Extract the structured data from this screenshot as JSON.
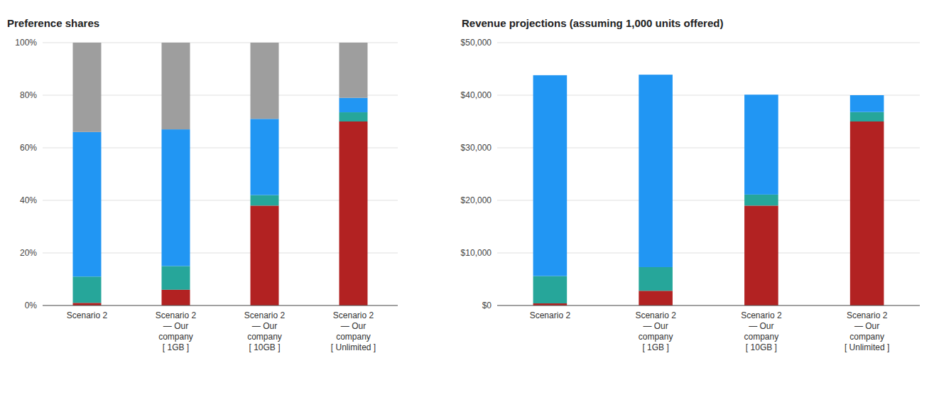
{
  "chart_data": [
    {
      "type": "bar",
      "stacked": true,
      "grid": true,
      "title": "Preference shares",
      "categories": [
        "Scenario 2",
        "Scenario 2\n— Our\ncompany\n[ 1GB ]",
        "Scenario 2\n— Our\ncompany\n[ 10GB ]",
        "Scenario 2\n— Our\ncompany\n[ Unlimited ]"
      ],
      "series": [
        {
          "color": "#B22222",
          "values": [
            0.01,
            0.06,
            0.38,
            0.7
          ]
        },
        {
          "color": "#26A69A",
          "values": [
            0.1,
            0.09,
            0.04,
            0.035
          ]
        },
        {
          "color": "#2196F3",
          "values": [
            0.55,
            0.52,
            0.29,
            0.055
          ]
        },
        {
          "color": "#9E9E9E",
          "values": [
            0.34,
            0.33,
            0.29,
            0.21
          ]
        }
      ],
      "ylim": [
        0,
        1.0
      ],
      "yticks": [
        {
          "value": 0,
          "label": "0%"
        },
        {
          "value": 0.2,
          "label": "20%"
        },
        {
          "value": 0.4,
          "label": "40%"
        },
        {
          "value": 0.6,
          "label": "60%"
        },
        {
          "value": 0.8,
          "label": "80%"
        },
        {
          "value": 1.0,
          "label": "100%"
        }
      ]
    },
    {
      "type": "bar",
      "stacked": true,
      "grid": true,
      "title": "Revenue projections (assuming 1,000 units offered)",
      "categories": [
        "Scenario 2",
        "Scenario 2\n— Our\ncompany\n[ 1GB ]",
        "Scenario 2\n— Our\ncompany\n[ 10GB ]",
        "Scenario 2\n— Our\ncompany\n[ Unlimited ]"
      ],
      "series": [
        {
          "color": "#B22222",
          "values": [
            400,
            2800,
            19000,
            35000
          ]
        },
        {
          "color": "#26A69A",
          "values": [
            5200,
            4500,
            2100,
            1800
          ]
        },
        {
          "color": "#2196F3",
          "values": [
            38200,
            36600,
            19000,
            3200
          ]
        }
      ],
      "ylim": [
        0,
        50000
      ],
      "yticks": [
        {
          "value": 0,
          "label": "$0"
        },
        {
          "value": 10000,
          "label": "$10,000"
        },
        {
          "value": 20000,
          "label": "$20,000"
        },
        {
          "value": 30000,
          "label": "$30,000"
        },
        {
          "value": 40000,
          "label": "$40,000"
        },
        {
          "value": 50000,
          "label": "$50,000"
        }
      ]
    }
  ]
}
